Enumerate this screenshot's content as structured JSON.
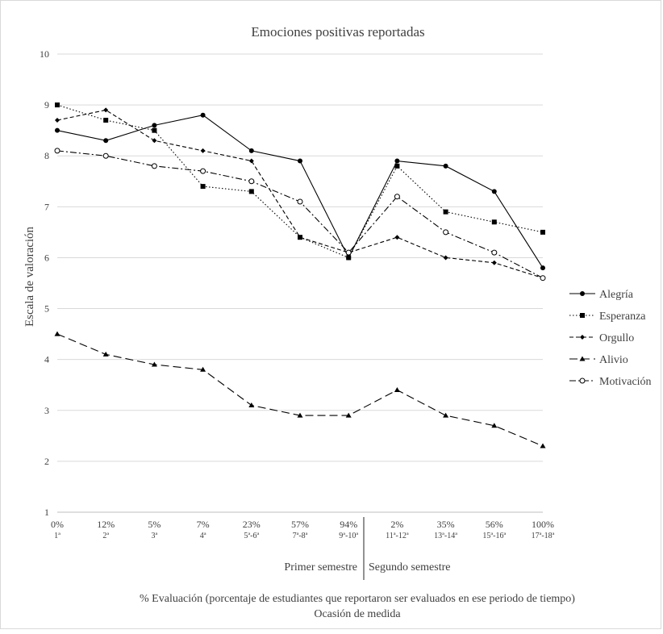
{
  "chart_data": {
    "type": "line",
    "title": "Emociones positivas reportadas",
    "ylabel": "Escala de valoración",
    "xlabel": "% Evaluación (porcentaje de estudiantes que reportaron ser evaluados en ese periodo de tiempo)",
    "xlabel2": "Ocasión de medida",
    "ylim": [
      1,
      10
    ],
    "yticks": [
      "1",
      "2",
      "3",
      "4",
      "5",
      "6",
      "7",
      "8",
      "9",
      "10"
    ],
    "grid": true,
    "legend_position": "right",
    "categories": [
      {
        "pct": "0%",
        "occ": "1ª"
      },
      {
        "pct": "12%",
        "occ": "2ª"
      },
      {
        "pct": "5%",
        "occ": "3ª"
      },
      {
        "pct": "7%",
        "occ": "4ª"
      },
      {
        "pct": "23%",
        "occ": "5ª-6ª"
      },
      {
        "pct": "57%",
        "occ": "7ª-8ª"
      },
      {
        "pct": "94%",
        "occ": "9ª-10ª"
      },
      {
        "pct": "2%",
        "occ": "11ª-12ª"
      },
      {
        "pct": "35%",
        "occ": "13ª-14ª"
      },
      {
        "pct": "56%",
        "occ": "15ª-16ª"
      },
      {
        "pct": "100%",
        "occ": "17ª-18ª"
      }
    ],
    "semesters": [
      "Primer semestre",
      "Segundo semestre"
    ],
    "series": [
      {
        "name": "Alegría",
        "marker": "circle",
        "dash": "solid",
        "values": [
          8.5,
          8.3,
          8.6,
          8.8,
          8.1,
          7.9,
          6.0,
          7.9,
          7.8,
          7.3,
          5.8
        ]
      },
      {
        "name": "Esperanza",
        "marker": "square",
        "dash": "dotted",
        "values": [
          9.0,
          8.7,
          8.5,
          7.4,
          7.3,
          6.4,
          6.0,
          7.8,
          6.9,
          6.7,
          6.5
        ]
      },
      {
        "name": "Orgullo",
        "marker": "diamond",
        "dash": "dashed",
        "values": [
          8.7,
          8.9,
          8.3,
          8.1,
          7.9,
          6.4,
          6.1,
          6.4,
          6.0,
          5.9,
          5.6
        ]
      },
      {
        "name": "Alivio",
        "marker": "triangle",
        "dash": "longdash",
        "values": [
          4.5,
          4.1,
          3.9,
          3.8,
          3.1,
          2.9,
          2.9,
          3.4,
          2.9,
          2.7,
          2.3
        ]
      },
      {
        "name": "Motivación",
        "marker": "open-circle",
        "dash": "dashdot",
        "values": [
          8.1,
          8.0,
          7.8,
          7.7,
          7.5,
          7.1,
          6.1,
          7.2,
          6.5,
          6.1,
          5.6
        ]
      }
    ]
  }
}
